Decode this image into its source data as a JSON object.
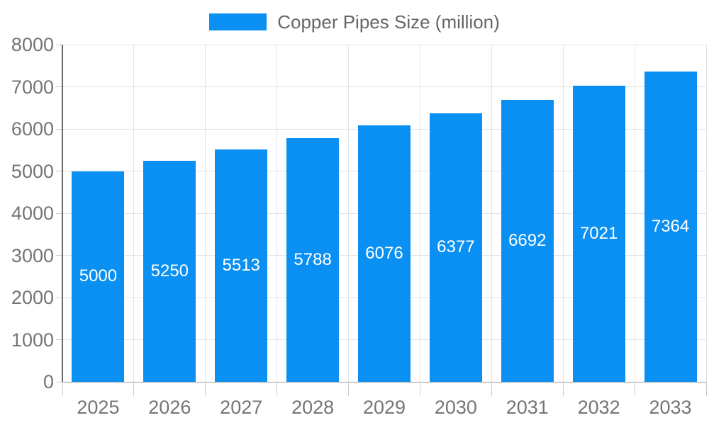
{
  "chart_data": {
    "type": "bar",
    "title": "Copper Pipes Size (million)",
    "categories": [
      "2025",
      "2026",
      "2027",
      "2028",
      "2029",
      "2030",
      "2031",
      "2032",
      "2033"
    ],
    "series": [
      {
        "name": "Copper Pipes Size (million)",
        "values": [
          5000,
          5250,
          5513,
          5788,
          6076,
          6377,
          6692,
          7021,
          7364
        ]
      }
    ],
    "xlabel": "",
    "ylabel": "",
    "ylim": [
      0,
      8000
    ],
    "ytick_step": 1000,
    "ytick_labels": [
      "0",
      "1000",
      "2000",
      "3000",
      "4000",
      "5000",
      "6000",
      "7000",
      "8000"
    ],
    "grid": true,
    "legend_position": "top-center",
    "value_labels": "inside-center",
    "colors": {
      "bar": "#0A90F2",
      "bar_value_label": "#ffffff",
      "grid_line": "#e3e3e3",
      "baseline": "#999999",
      "y_axis_line": "#666666",
      "tick_mark": "#cccccc",
      "axis_tick_label": "#757575",
      "legend_text": "#666666",
      "background": "#ffffff"
    }
  }
}
